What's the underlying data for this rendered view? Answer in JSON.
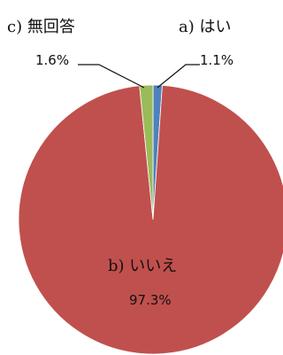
{
  "chart_data": {
    "type": "pie",
    "start": "top",
    "direction": "clockwise",
    "slices": [
      {
        "name": "a) はい",
        "value": 1.1,
        "label": "1.1%",
        "color": "#4F81BD"
      },
      {
        "name": "b) いいえ",
        "value": 97.3,
        "label": "97.3%",
        "color": "#C0504D"
      },
      {
        "name": "c) 無回答",
        "value": 1.6,
        "label": "1.6%",
        "color": "#9BBB59"
      }
    ]
  }
}
